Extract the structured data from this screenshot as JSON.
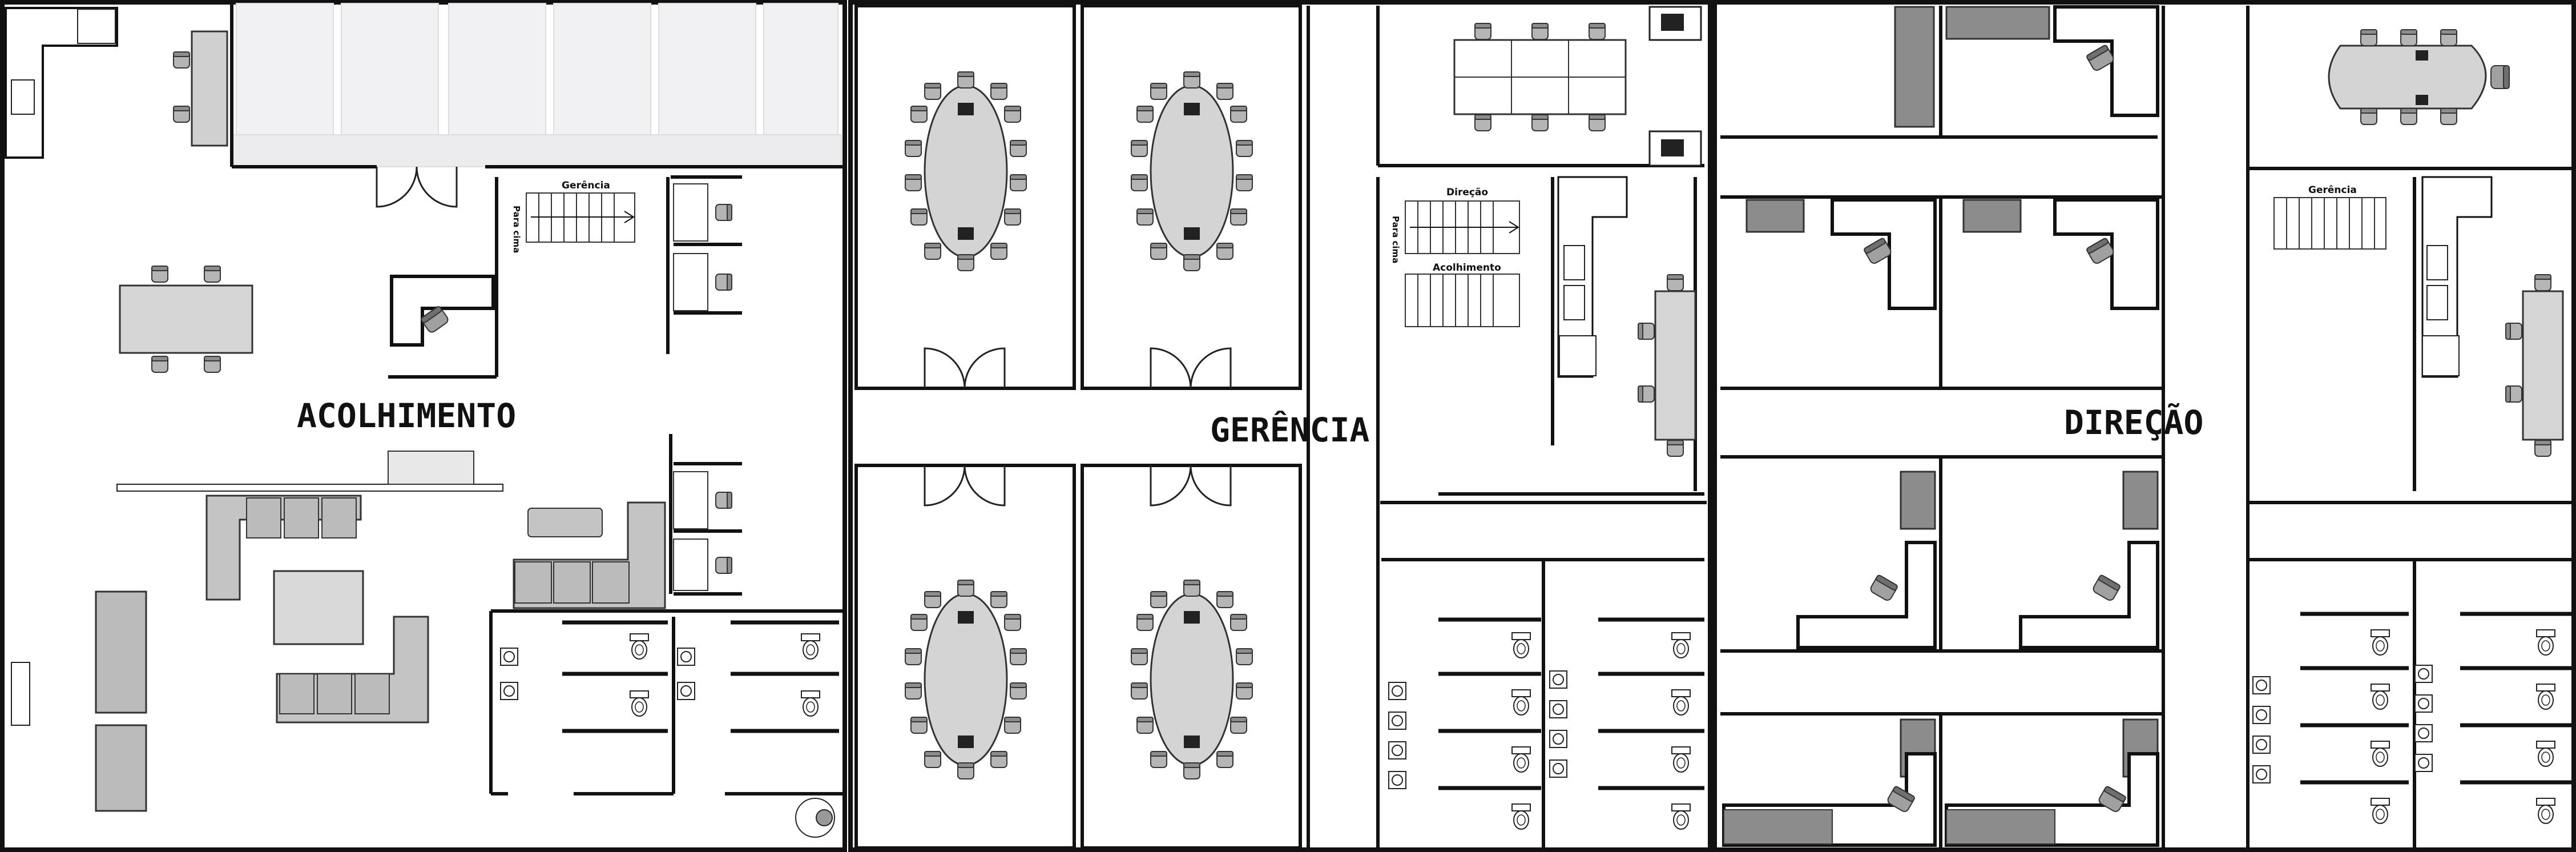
{
  "plan": {
    "sections": [
      {
        "name": "acolhimento",
        "title": "ACOLHIMENTO"
      },
      {
        "name": "gerencia",
        "title": "GERÊNCIA"
      },
      {
        "name": "direcao",
        "title": "DIREÇÃO"
      }
    ],
    "stair_labels": {
      "acolhimento_stair_top": "Gerência",
      "acolhimento_stair_side": "Para cima",
      "gerencia_stair_top": "Direção",
      "gerencia_stair_side": "Para cima",
      "gerencia_stair_bottom": "Acolhimento",
      "direcao_stair_top": "Gerência"
    },
    "colors": {
      "wall": "#111111",
      "furniture": "#c8c8c8",
      "furniture_dark": "#8a8a8a",
      "chair": "#a9a9a9",
      "background": "#ffffff"
    }
  }
}
